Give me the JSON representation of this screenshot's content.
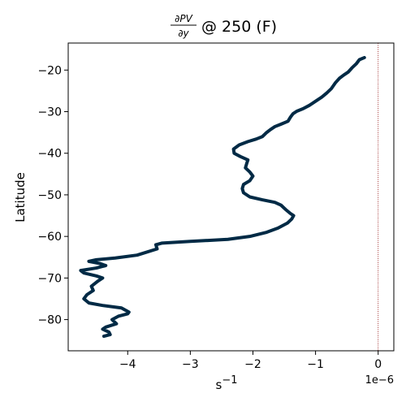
{
  "chart_data": {
    "type": "line",
    "title": {
      "numerator": "∂PV",
      "denominator": "∂y",
      "suffix": "@ 250 (F)"
    },
    "xlabel": {
      "base": "s",
      "exponent": "−1"
    },
    "ylabel": "Latitude",
    "offset_text": "1e−6",
    "xlim": [
      -4.95,
      0.25
    ],
    "ylim": [
      -87.5,
      -13.5
    ],
    "xticks": [
      -4,
      -3,
      -2,
      -1,
      0
    ],
    "xtick_labels": [
      "−4",
      "−3",
      "−2",
      "−1",
      "0"
    ],
    "yticks": [
      -20,
      -30,
      -40,
      -50,
      -60,
      -70,
      -80
    ],
    "ytick_labels": [
      "−20",
      "−30",
      "−40",
      "−50",
      "−60",
      "−70",
      "−80"
    ],
    "grid": false,
    "reference_line": {
      "x": 0,
      "style": "dotted",
      "color": "#8b0000"
    },
    "series": [
      {
        "color": "#002a45",
        "points": [
          [
            -0.22,
            -17
          ],
          [
            -0.3,
            -17.5
          ],
          [
            -0.35,
            -18.5
          ],
          [
            -0.42,
            -19.5
          ],
          [
            -0.48,
            -20.5
          ],
          [
            -0.55,
            -21.2
          ],
          [
            -0.62,
            -22
          ],
          [
            -0.68,
            -23
          ],
          [
            -0.75,
            -24.5
          ],
          [
            -0.82,
            -25.5
          ],
          [
            -0.9,
            -26.5
          ],
          [
            -1.0,
            -27.5
          ],
          [
            -1.1,
            -28.5
          ],
          [
            -1.2,
            -29.3
          ],
          [
            -1.3,
            -29.9
          ],
          [
            -1.36,
            -30.5
          ],
          [
            -1.4,
            -31.3
          ],
          [
            -1.44,
            -32.3
          ],
          [
            -1.55,
            -33
          ],
          [
            -1.65,
            -33.6
          ],
          [
            -1.72,
            -34.3
          ],
          [
            -1.78,
            -35
          ],
          [
            -1.85,
            -36
          ],
          [
            -1.95,
            -36.6
          ],
          [
            -2.08,
            -37.2
          ],
          [
            -2.22,
            -38
          ],
          [
            -2.31,
            -39
          ],
          [
            -2.3,
            -40
          ],
          [
            -2.2,
            -40.8
          ],
          [
            -2.08,
            -41.6
          ],
          [
            -2.1,
            -42.5
          ],
          [
            -2.12,
            -43.5
          ],
          [
            -2.05,
            -44.5
          ],
          [
            -2.0,
            -45.5
          ],
          [
            -2.05,
            -46.6
          ],
          [
            -2.15,
            -47.5
          ],
          [
            -2.17,
            -48.5
          ],
          [
            -2.15,
            -49.5
          ],
          [
            -2.05,
            -50.5
          ],
          [
            -1.85,
            -51.2
          ],
          [
            -1.65,
            -51.8
          ],
          [
            -1.55,
            -52.5
          ],
          [
            -1.48,
            -53.5
          ],
          [
            -1.4,
            -54.5
          ],
          [
            -1.35,
            -55
          ],
          [
            -1.38,
            -55.8
          ],
          [
            -1.45,
            -56.8
          ],
          [
            -1.6,
            -58
          ],
          [
            -1.78,
            -59
          ],
          [
            -2.05,
            -60
          ],
          [
            -2.4,
            -60.7
          ],
          [
            -3.0,
            -61.2
          ],
          [
            -3.45,
            -61.6
          ],
          [
            -3.55,
            -62
          ],
          [
            -3.53,
            -63
          ],
          [
            -3.85,
            -64.5
          ],
          [
            -4.2,
            -65.2
          ],
          [
            -4.5,
            -65.6
          ],
          [
            -4.62,
            -66
          ],
          [
            -4.45,
            -66.5
          ],
          [
            -4.35,
            -67
          ],
          [
            -4.5,
            -67.6
          ],
          [
            -4.75,
            -68.2
          ],
          [
            -4.7,
            -68.8
          ],
          [
            -4.5,
            -69.5
          ],
          [
            -4.4,
            -70
          ],
          [
            -4.48,
            -70.8
          ],
          [
            -4.58,
            -72
          ],
          [
            -4.55,
            -73
          ],
          [
            -4.65,
            -74
          ],
          [
            -4.7,
            -75
          ],
          [
            -4.62,
            -76
          ],
          [
            -4.4,
            -76.6
          ],
          [
            -4.1,
            -77.2
          ],
          [
            -3.98,
            -78.2
          ],
          [
            -4.0,
            -78.6
          ],
          [
            -4.15,
            -79.2
          ],
          [
            -4.25,
            -80
          ],
          [
            -4.18,
            -81
          ],
          [
            -4.35,
            -81.8
          ],
          [
            -4.4,
            -82.3
          ],
          [
            -4.3,
            -83
          ],
          [
            -4.28,
            -83.6
          ],
          [
            -4.38,
            -84
          ]
        ]
      }
    ]
  }
}
